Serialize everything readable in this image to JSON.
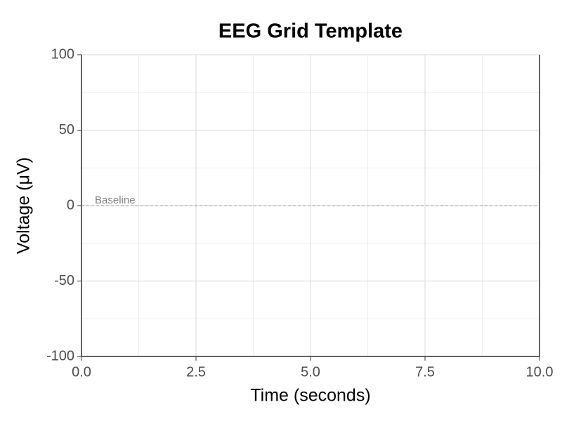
{
  "chart_data": {
    "type": "line",
    "title": "EEG Grid Template",
    "x_label": "Time (seconds)",
    "y_label": "Voltage (μV)",
    "xlim": [
      0,
      10
    ],
    "xticks": [
      {
        "value": 0,
        "label": "0.0"
      },
      2.5,
      {
        "value": 5,
        "label": "5.0"
      },
      7.5,
      {
        "value": 10,
        "label": "10.0"
      }
    ],
    "ylim": [
      -100,
      100
    ],
    "yticks": [
      -100,
      -50,
      0,
      50,
      100
    ],
    "grid": true,
    "minor_grid": true,
    "annotations": [
      {
        "text": "Baseline",
        "y": 0
      }
    ],
    "series": []
  }
}
